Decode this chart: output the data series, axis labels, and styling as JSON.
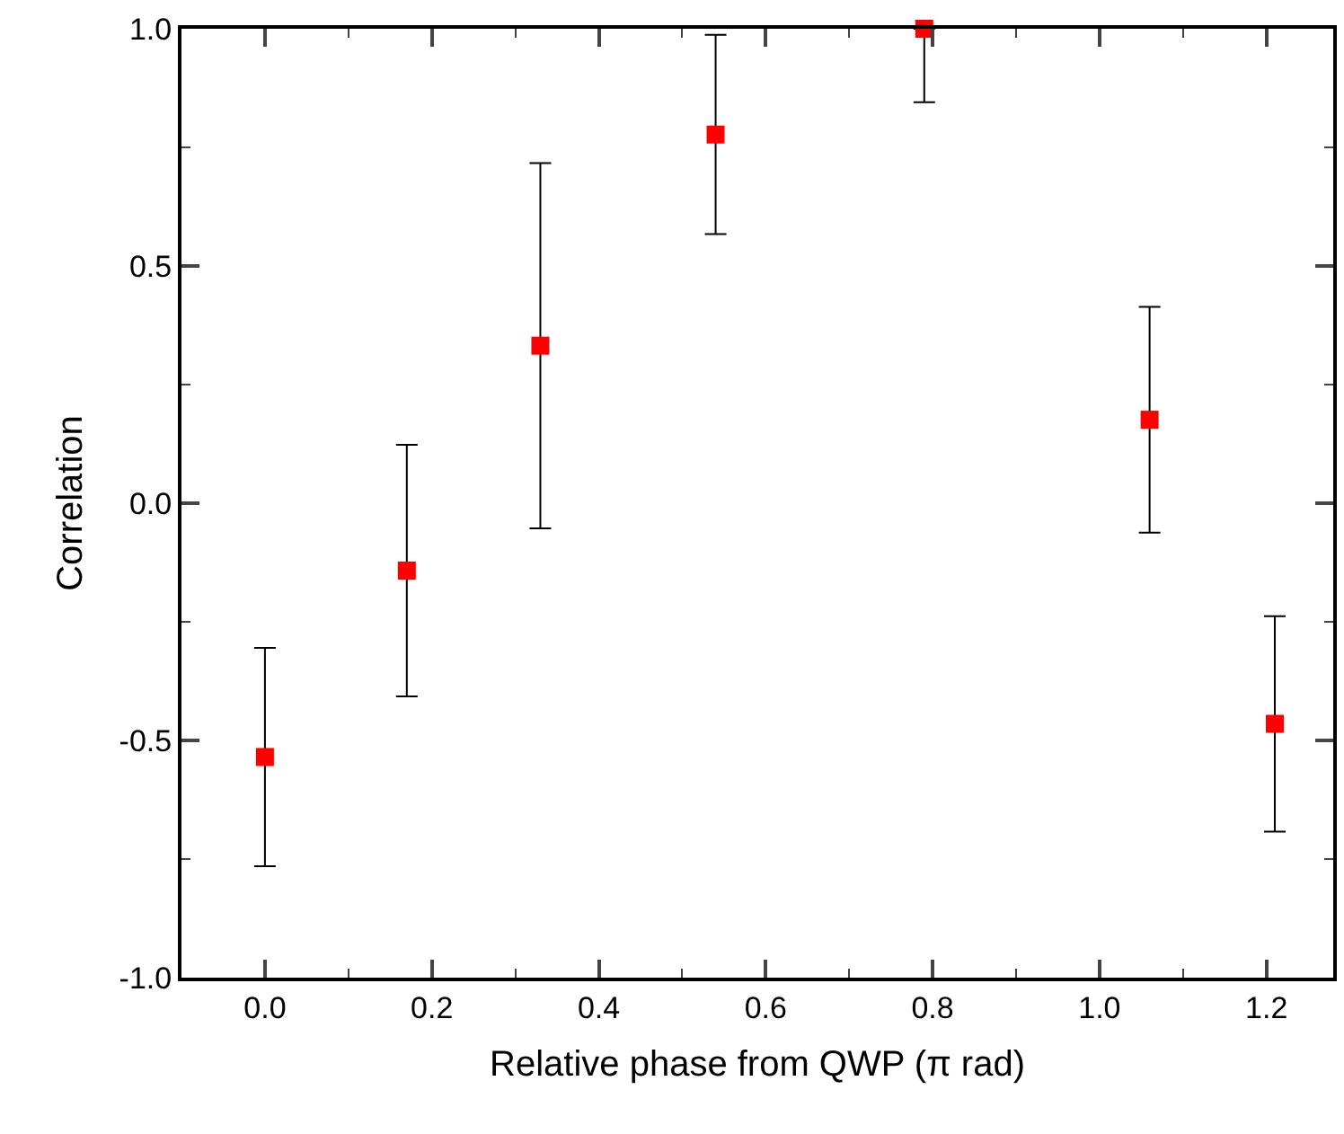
{
  "chart_data": {
    "type": "scatter",
    "xlabel": "Relative phase from QWP (π rad)",
    "ylabel": "Correlation",
    "x": [
      0.0,
      0.17,
      0.33,
      0.54,
      0.79,
      1.06,
      1.21
    ],
    "series": [
      {
        "color": "#ff0000",
        "values": [
          -0.535,
          -0.142,
          0.332,
          0.777,
          1.0,
          0.176,
          -0.465
        ],
        "errors": [
          0.23,
          0.265,
          0.385,
          0.21,
          [
            0.845,
            1.0
          ],
          0.238,
          0.227
        ]
      }
    ],
    "marker": "square",
    "xlim": [
      -0.1,
      1.28
    ],
    "ylim": [
      -1.0,
      1.0
    ],
    "xticks": [
      {
        "value": 0,
        "label": "0.0"
      },
      0.2,
      0.4,
      0.6,
      0.8,
      {
        "value": 1,
        "label": "1.0"
      },
      1.2,
      {
        "value": 0.1,
        "label": null
      },
      {
        "value": 0.3,
        "label": null
      },
      {
        "value": 0.5,
        "label": null
      },
      {
        "value": 0.7,
        "label": null
      },
      {
        "value": 0.9,
        "label": null
      },
      {
        "value": 1.1,
        "label": null
      }
    ],
    "yticks": [
      {
        "value": -1,
        "label": "-1.0"
      },
      -0.5,
      {
        "value": 0,
        "label": "0.0"
      },
      0.5,
      {
        "value": 1,
        "label": "1.0"
      },
      {
        "value": -0.75,
        "label": null
      },
      {
        "value": -0.25,
        "label": null
      },
      {
        "value": 0.25,
        "label": null
      },
      {
        "value": 0.75,
        "label": null
      }
    ]
  }
}
